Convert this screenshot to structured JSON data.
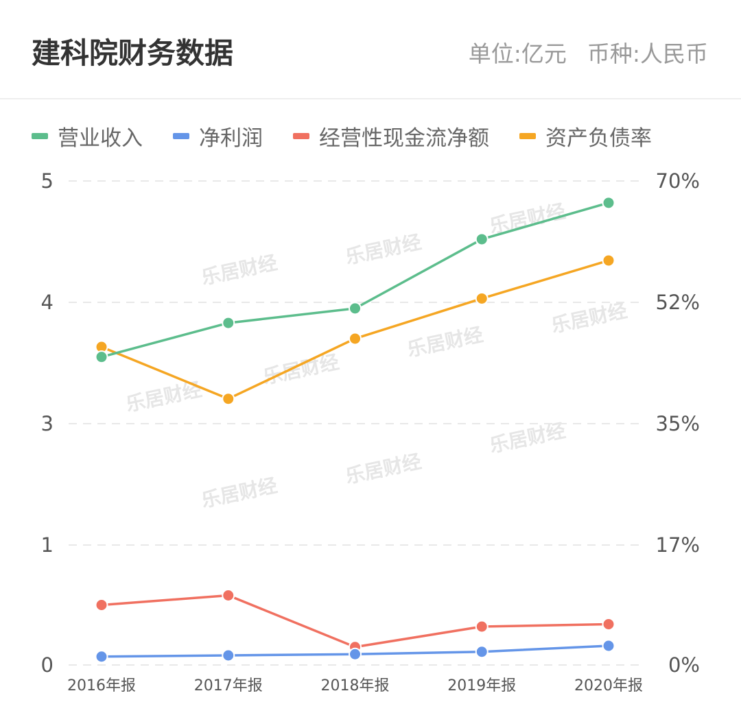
{
  "header": {
    "title": "建科院财务数据",
    "unit": "单位:亿元",
    "currency": "币种:人民币"
  },
  "colors": {
    "revenue": "#5cbd8c",
    "net_profit": "#6495e8",
    "operating_cash_flow": "#f07060",
    "debt_ratio": "#f5a623"
  },
  "watermark": "乐居财经",
  "chart_data": {
    "type": "line",
    "categories": [
      "2016年报",
      "2017年报",
      "2018年报",
      "2019年报",
      "2020年报"
    ],
    "left_axis": {
      "tick_values": [
        0,
        1,
        3,
        4,
        5
      ],
      "tick_labels": [
        "0",
        "1",
        "3",
        "4",
        "5"
      ],
      "range": [
        0,
        5
      ],
      "broken_between": [
        1,
        3
      ]
    },
    "right_axis": {
      "tick_labels": [
        "0%",
        "17%",
        "35%",
        "52%",
        "70%"
      ],
      "range": [
        0,
        70
      ],
      "unit": "%"
    },
    "grid": "horizontal-dashed",
    "legend_position": "top",
    "series": [
      {
        "name": "营业收入",
        "axis": "left",
        "color": "#5cbd8c",
        "values": [
          3.55,
          3.83,
          3.95,
          4.52,
          4.82
        ]
      },
      {
        "name": "净利润",
        "axis": "left",
        "color": "#6495e8",
        "values": [
          0.07,
          0.08,
          0.09,
          0.11,
          0.16
        ]
      },
      {
        "name": "经营性现金流净额",
        "axis": "left",
        "color": "#f07060",
        "values": [
          0.5,
          0.58,
          0.15,
          0.32,
          0.34
        ]
      },
      {
        "name": "资产负债率",
        "axis": "right",
        "color": "#f5a623",
        "values": [
          46.0,
          38.5,
          47.2,
          53.0,
          58.5
        ]
      }
    ]
  }
}
